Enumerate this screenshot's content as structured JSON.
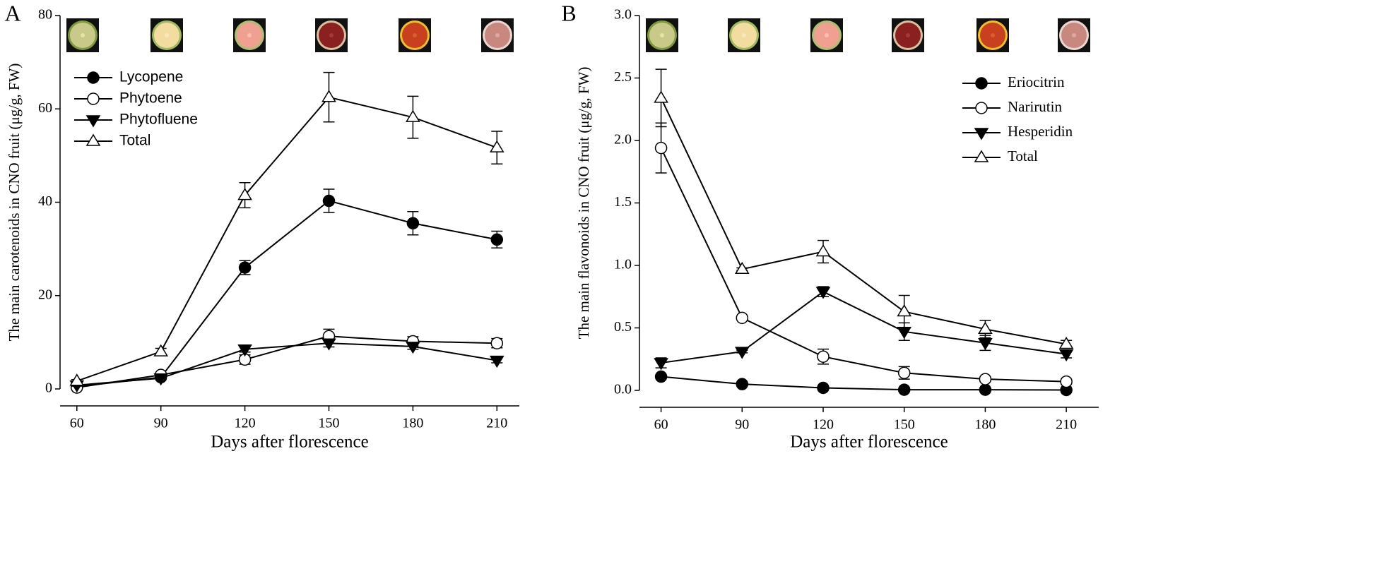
{
  "chart_data": [
    {
      "type": "line",
      "panel": "A",
      "ylabel": "The main carotenoids in CNO fruit (μg/g, FW)",
      "xlabel": "Days after florescence",
      "x": [
        60,
        90,
        120,
        150,
        180,
        210
      ],
      "xlim": [
        54,
        218
      ],
      "xticks": [
        60,
        90,
        120,
        150,
        180,
        210
      ],
      "ylim": [
        0,
        80
      ],
      "yticks": [
        0,
        20,
        40,
        60,
        80
      ],
      "series": [
        {
          "name": "Lycopene",
          "color": "#000000",
          "marker": "filled-circle",
          "values": [
            0.5,
            2.5,
            26,
            40.3,
            35.5,
            32
          ],
          "errors": [
            0.3,
            0.4,
            1.5,
            2.5,
            2.5,
            1.8
          ]
        },
        {
          "name": "Phytoene",
          "color": "#000000",
          "marker": "open-circle",
          "values": [
            0.3,
            3,
            6.3,
            11.3,
            10.2,
            9.8
          ],
          "errors": [
            0.2,
            0.4,
            1,
            1.5,
            1,
            1
          ]
        },
        {
          "name": "Phytofluene",
          "color": "#000000",
          "marker": "filled-down-triangle",
          "values": [
            0.8,
            2.3,
            8.5,
            9.8,
            9.1,
            6.1
          ],
          "errors": [
            0.2,
            0.3,
            0.6,
            0.8,
            0.6,
            0.5
          ]
        },
        {
          "name": "Total",
          "color": "#000000",
          "marker": "open-up-triangle",
          "values": [
            1.7,
            8,
            41.5,
            62.5,
            58.2,
            51.7
          ],
          "errors": [
            0.3,
            0.7,
            2.7,
            5.3,
            4.5,
            3.5
          ]
        }
      ]
    },
    {
      "type": "line",
      "panel": "B",
      "ylabel": "The main flavonoids in CNO fruit (μg/g, FW)",
      "xlabel": "Days after florescence",
      "x": [
        60,
        90,
        120,
        150,
        180,
        210
      ],
      "xlim": [
        52,
        222
      ],
      "xticks": [
        60,
        90,
        120,
        150,
        180,
        210
      ],
      "ylim": [
        0,
        3
      ],
      "yticks": [
        {
          "value": 0,
          "label": "0.0"
        },
        0.5,
        {
          "value": 1,
          "label": "1.0"
        },
        1.5,
        {
          "value": 2,
          "label": "2.0"
        },
        2.5,
        {
          "value": 3,
          "label": "3.0"
        }
      ],
      "series": [
        {
          "name": "Eriocitrin",
          "color": "#000000",
          "marker": "filled-circle",
          "values": [
            0.11,
            0.05,
            0.02,
            0.005,
            0.005,
            0.003
          ],
          "errors": [
            0.01,
            0.005,
            0.005,
            0.002,
            0.002,
            0.001
          ]
        },
        {
          "name": "Narirutin",
          "color": "#000000",
          "marker": "open-circle",
          "values": [
            1.94,
            0.58,
            0.27,
            0.14,
            0.09,
            0.07
          ],
          "errors": [
            0.2,
            0.01,
            0.06,
            0.05,
            0.02,
            0.02
          ]
        },
        {
          "name": "Hesperidin",
          "color": "#000000",
          "marker": "filled-down-triangle",
          "values": [
            0.22,
            0.31,
            0.79,
            0.47,
            0.38,
            0.29
          ],
          "errors": [
            0.04,
            0.01,
            0.04,
            0.07,
            0.06,
            0.03
          ]
        },
        {
          "name": "Total",
          "color": "#000000",
          "marker": "open-up-triangle",
          "values": [
            2.34,
            0.97,
            1.11,
            0.63,
            0.49,
            0.37
          ],
          "errors": [
            0.23,
            0.01,
            0.09,
            0.13,
            0.07,
            0.03
          ]
        }
      ]
    }
  ]
}
